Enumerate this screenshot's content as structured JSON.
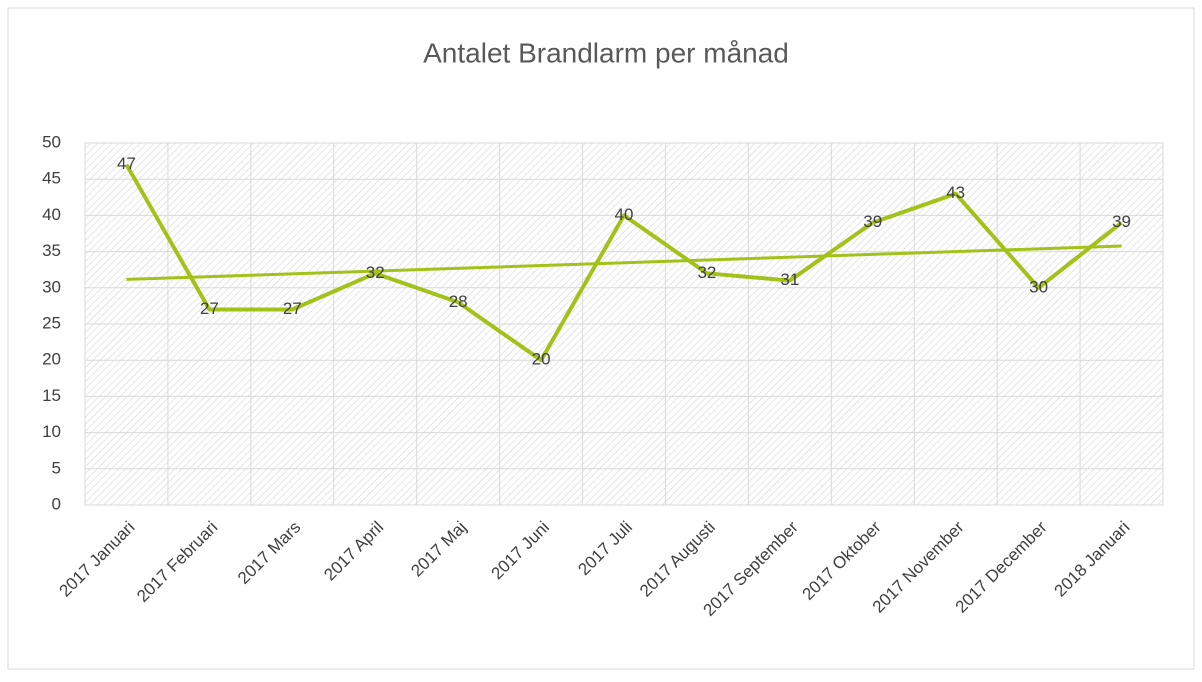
{
  "chart_data": {
    "type": "line",
    "title": "Antalet Brandlarm per månad",
    "categories": [
      "2017 Januari",
      "2017 Februari",
      "2017 Mars",
      "2017 April",
      "2017 Maj",
      "2017 Juni",
      "2017 Juli",
      "2017 Augusti",
      "2017 September",
      "2017 Oktober",
      "2017 November",
      "2017 December",
      "2018 Januari"
    ],
    "values": [
      47,
      27,
      27,
      32,
      28,
      20,
      40,
      32,
      31,
      39,
      43,
      30,
      39
    ],
    "color": "#a2c219",
    "trendline": "linear",
    "ylim": [
      0,
      50
    ],
    "yticks": [
      0,
      5,
      10,
      15,
      20,
      25,
      30,
      35,
      40,
      45,
      50
    ],
    "grid": true
  }
}
